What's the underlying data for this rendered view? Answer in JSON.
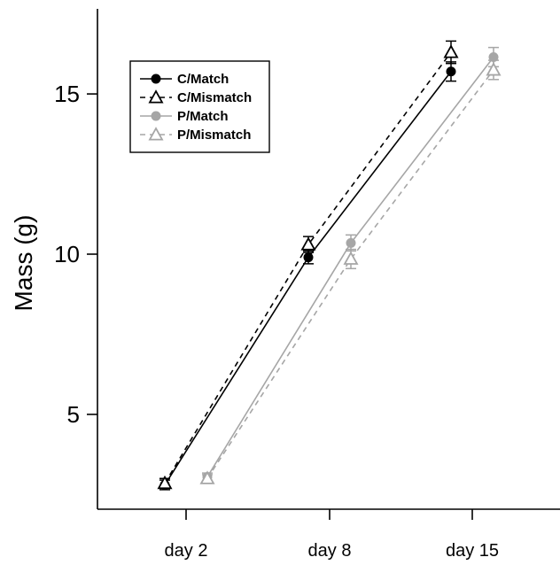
{
  "chart_data": {
    "type": "line",
    "title": "",
    "xlabel": "",
    "ylabel": "Mass (g)",
    "categories": [
      "day 2",
      "day 8",
      "day 15"
    ],
    "yticks": [
      5,
      10,
      15
    ],
    "ylim": [
      2.4,
      17.6
    ],
    "grid": false,
    "legend_position": "top-left",
    "series": [
      {
        "name": "C/Match",
        "color": "#000000",
        "marker": "circle",
        "line_style": "solid",
        "group": "C",
        "values": [
          2.8,
          9.9,
          15.7
        ],
        "errors": [
          0.15,
          0.2,
          0.3
        ]
      },
      {
        "name": "C/Mismatch",
        "color": "#000000",
        "marker": "open-triangle",
        "line_style": "dashed",
        "group": "C",
        "values": [
          2.85,
          10.3,
          16.3
        ],
        "errors": [
          0.15,
          0.25,
          0.35
        ]
      },
      {
        "name": "P/Match",
        "color": "#a6a6a6",
        "marker": "circle",
        "line_style": "solid",
        "group": "P",
        "values": [
          3.05,
          10.35,
          16.15
        ],
        "errors": [
          0.12,
          0.25,
          0.3
        ]
      },
      {
        "name": "P/Mismatch",
        "color": "#a6a6a6",
        "marker": "open-triangle",
        "line_style": "dashed",
        "group": "P",
        "values": [
          3.0,
          9.85,
          15.75
        ],
        "errors": [
          0.12,
          0.3,
          0.3
        ]
      }
    ]
  }
}
